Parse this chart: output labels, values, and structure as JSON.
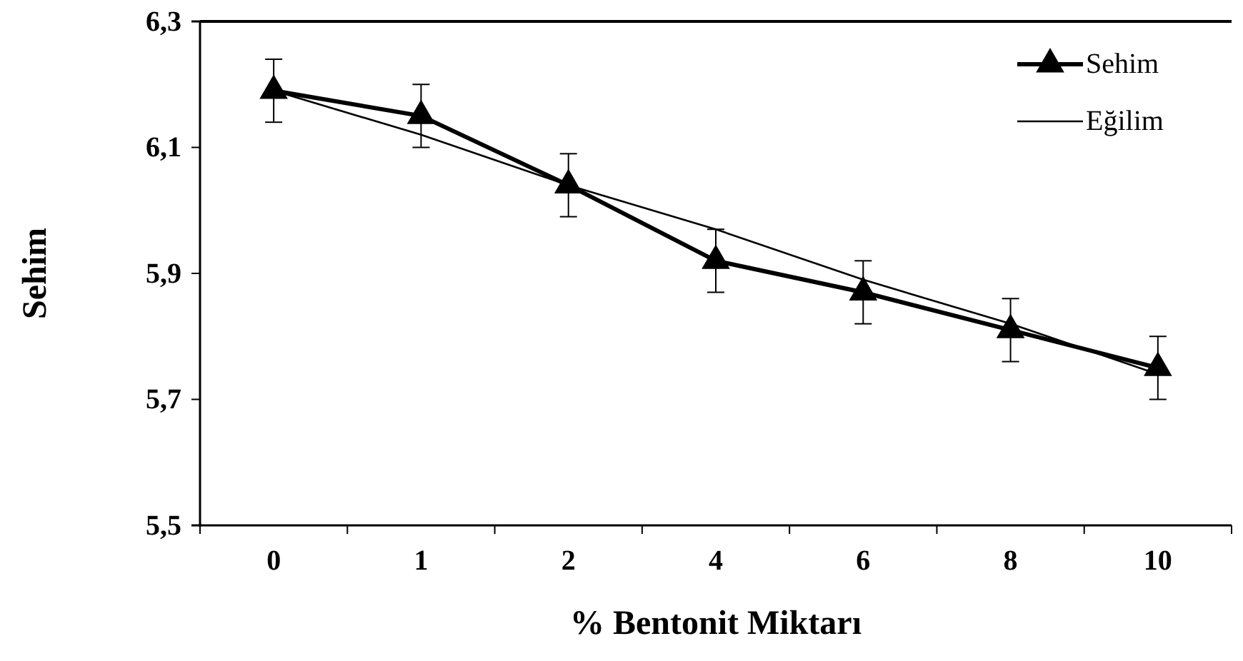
{
  "chart_data": {
    "type": "line",
    "xlabel": "% Bentonit Miktarı",
    "ylabel": "Sehim",
    "categories": [
      "0",
      "1",
      "2",
      "4",
      "6",
      "8",
      "10"
    ],
    "series": [
      {
        "name": "Sehim",
        "color": "#000000",
        "marker": "triangle",
        "values": [
          6.19,
          6.15,
          6.04,
          5.92,
          5.87,
          5.81,
          5.75
        ],
        "errors": [
          0.05,
          0.05,
          0.05,
          0.05,
          0.05,
          0.05,
          0.05
        ]
      },
      {
        "name": "Eğilim",
        "color": "#000000",
        "marker": "none",
        "values": [
          6.19,
          6.12,
          6.04,
          5.97,
          5.89,
          5.82,
          5.74
        ]
      }
    ],
    "ylim": [
      5.5,
      6.3
    ],
    "yticks": [
      {
        "value": 5.5,
        "label": "5,5"
      },
      {
        "value": 5.7,
        "label": "5,7"
      },
      {
        "value": 5.9,
        "label": "5,9"
      },
      {
        "value": 6.1,
        "label": "6,1"
      },
      {
        "value": 6.3,
        "label": "6,3"
      }
    ],
    "grid": false,
    "legend": "top right"
  }
}
